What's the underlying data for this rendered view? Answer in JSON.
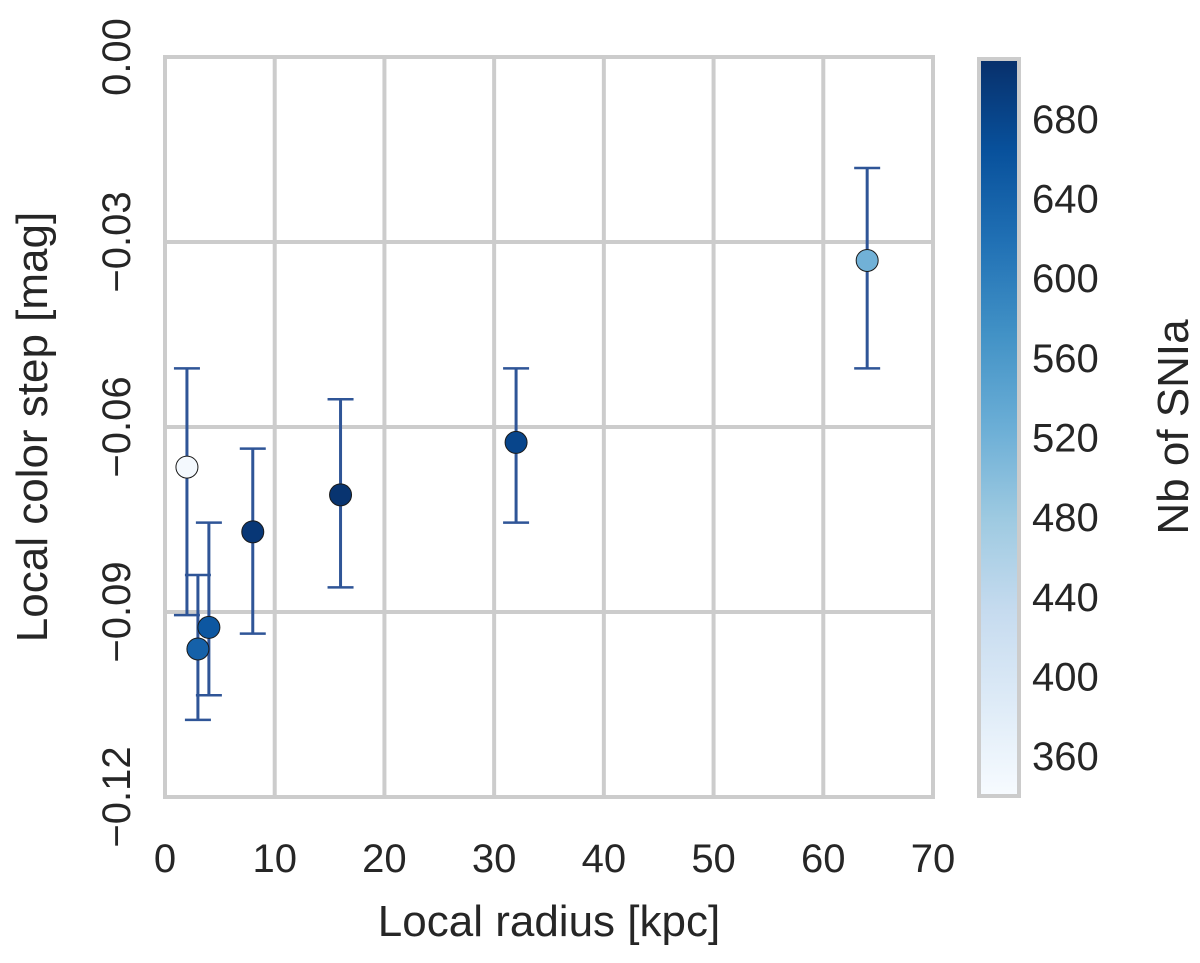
{
  "chart_data": {
    "type": "scatter",
    "xlabel": "Local radius [kpc]",
    "ylabel": "Local color step [mag]",
    "xlim": [
      0,
      70
    ],
    "ylim": [
      -0.12,
      0.0
    ],
    "x_ticks": [
      0,
      10,
      20,
      30,
      40,
      50,
      60,
      70
    ],
    "x_tick_labels": [
      "0",
      "10",
      "20",
      "30",
      "40",
      "50",
      "60",
      "70"
    ],
    "y_ticks": [
      -0.12,
      -0.09,
      -0.06,
      -0.03,
      0.0
    ],
    "y_tick_labels": [
      "−0.12",
      "−0.09",
      "−0.06",
      "−0.03",
      "0.00"
    ],
    "grid": true,
    "error_bar_color": "#2f5597",
    "points": [
      {
        "x": 2,
        "y": -0.0665,
        "yerr_low": -0.0905,
        "yerr_high": -0.0505,
        "count": 345
      },
      {
        "x": 3,
        "y": -0.096,
        "yerr_low": -0.1075,
        "yerr_high": -0.084,
        "count": 640
      },
      {
        "x": 4,
        "y": -0.0925,
        "yerr_low": -0.1035,
        "yerr_high": -0.0755,
        "count": 655
      },
      {
        "x": 8,
        "y": -0.077,
        "yerr_low": -0.0935,
        "yerr_high": -0.0635,
        "count": 700
      },
      {
        "x": 16,
        "y": -0.071,
        "yerr_low": -0.086,
        "yerr_high": -0.0555,
        "count": 705
      },
      {
        "x": 32,
        "y": -0.0625,
        "yerr_low": -0.0755,
        "yerr_high": -0.0505,
        "count": 680
      },
      {
        "x": 64,
        "y": -0.033,
        "yerr_low": -0.0505,
        "yerr_high": -0.018,
        "count": 520
      }
    ],
    "colorbar": {
      "label": "Nb of SNIa",
      "colormap": "Blues",
      "range": [
        340,
        710
      ],
      "ticks": [
        360,
        400,
        440,
        480,
        520,
        560,
        600,
        640,
        680
      ],
      "tick_labels": [
        "360",
        "400",
        "440",
        "480",
        "520",
        "560",
        "600",
        "640",
        "680"
      ]
    }
  }
}
